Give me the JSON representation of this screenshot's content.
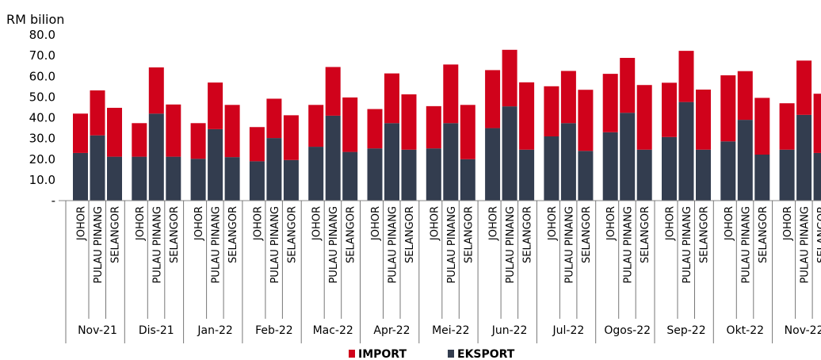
{
  "chart_data": {
    "type": "bar",
    "stacked": true,
    "ylabel": "RM bilion",
    "ylim": [
      0,
      80
    ],
    "yticks": [
      "-",
      "10.0",
      "20.0",
      "30.0",
      "40.0",
      "50.0",
      "60.0",
      "70.0",
      "80.0"
    ],
    "grid": false,
    "legend_position": "bottom",
    "colors": {
      "IMPORT": "#d0021b",
      "EKSPORT": "#333d4f"
    },
    "states": [
      "JOHOR",
      "PULAU PINANG",
      "SELANGOR"
    ],
    "months": [
      "Nov-21",
      "Dis-21",
      "Jan-22",
      "Feb-22",
      "Mac-22",
      "Apr-22",
      "Mei-22",
      "Jun-22",
      "Jul-22",
      "Ogos-22",
      "Sep-22",
      "Okt-22",
      "Nov-22"
    ],
    "series": [
      {
        "name": "EKSPORT",
        "values": [
          [
            23.0,
            31.5,
            21.2
          ],
          [
            21.2,
            42.0,
            21.2
          ],
          [
            20.2,
            34.5,
            21.0
          ],
          [
            19.0,
            30.2,
            19.6
          ],
          [
            26.0,
            41.0,
            23.5
          ],
          [
            25.2,
            37.4,
            24.6
          ],
          [
            25.2,
            37.4,
            20.0
          ],
          [
            35.0,
            45.5,
            24.6
          ],
          [
            31.0,
            37.4,
            24.0
          ],
          [
            33.0,
            42.4,
            24.6
          ],
          [
            30.7,
            47.6,
            24.6
          ],
          [
            28.6,
            39.0,
            22.2
          ],
          [
            24.6,
            41.4,
            23.0
          ]
        ]
      },
      {
        "name": "IMPORT",
        "values": [
          [
            19.0,
            21.7,
            23.6
          ],
          [
            16.2,
            22.3,
            25.2
          ],
          [
            17.2,
            22.5,
            25.2
          ],
          [
            16.5,
            19.0,
            21.6
          ],
          [
            20.2,
            23.5,
            26.3
          ],
          [
            19.0,
            24.0,
            26.7
          ],
          [
            20.4,
            28.3,
            26.2
          ],
          [
            28.0,
            27.3,
            32.5
          ],
          [
            24.2,
            25.2,
            29.5
          ],
          [
            28.2,
            26.5,
            31.2
          ],
          [
            26.2,
            24.7,
            29.0
          ],
          [
            31.9,
            23.5,
            27.4
          ],
          [
            22.4,
            26.2,
            28.6
          ]
        ]
      }
    ],
    "legend": [
      "IMPORT",
      "EKSPORT"
    ]
  }
}
